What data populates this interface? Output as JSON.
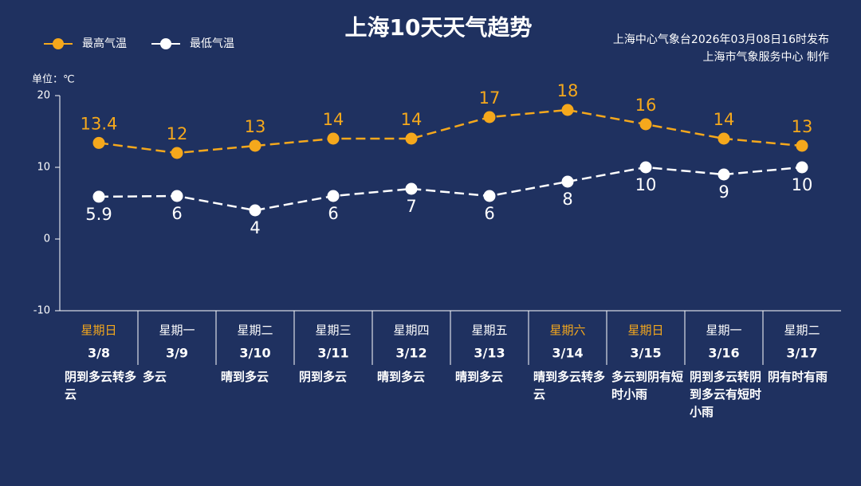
{
  "chart_data": {
    "type": "line",
    "title": "上海10天天气趋势",
    "source": [
      "上海中心气象台2026年03月08日16时发布",
      "上海市气象服务中心 制作"
    ],
    "unit_label": "单位：℃",
    "categories": [
      "3/8",
      "3/9",
      "3/10",
      "3/11",
      "3/12",
      "3/13",
      "3/14",
      "3/15",
      "3/16",
      "3/17"
    ],
    "weekdays": [
      "星期日",
      "星期一",
      "星期二",
      "星期三",
      "星期四",
      "星期五",
      "星期六",
      "星期日",
      "星期一",
      "星期二"
    ],
    "weekday_colors": [
      "#f5a81c",
      "#ffffff",
      "#ffffff",
      "#ffffff",
      "#ffffff",
      "#ffffff",
      "#f5a81c",
      "#f5a81c",
      "#ffffff",
      "#ffffff"
    ],
    "weather": [
      "阴到多云转多云",
      "多云",
      "晴到多云",
      "阴到多云",
      "晴到多云",
      "晴到多云",
      "晴到多云转多云",
      "多云到阴有短时小雨",
      "阴到多云转阴到多云有短时小雨",
      "阴有时有雨"
    ],
    "series": [
      {
        "name": "最高气温",
        "color": "#f5a81c",
        "values": [
          13.4,
          12,
          13,
          14,
          14,
          17,
          18,
          16,
          14,
          13
        ]
      },
      {
        "name": "最低气温",
        "color": "#ffffff",
        "values": [
          5.9,
          6,
          4,
          6,
          7,
          6,
          8,
          10,
          9,
          10
        ]
      }
    ],
    "ylim": [
      -10,
      20
    ],
    "yticks": [
      -10,
      0,
      10,
      20
    ]
  }
}
